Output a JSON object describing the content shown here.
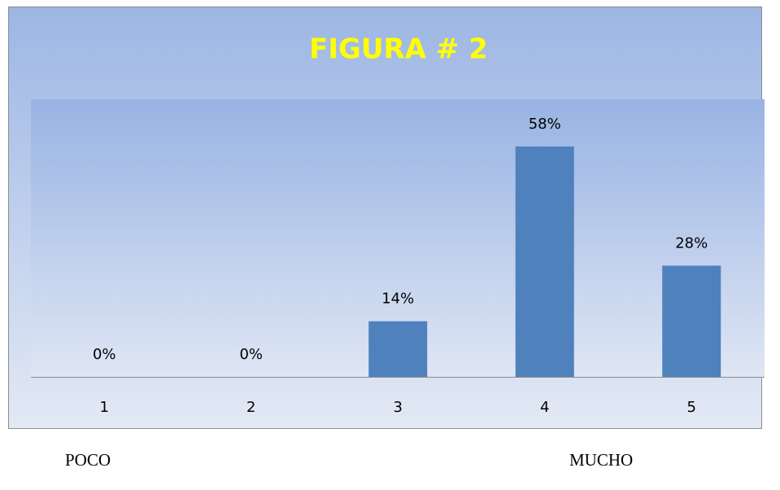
{
  "chart_data": {
    "type": "bar",
    "title": "FIGURA # 2",
    "categories": [
      "1",
      "2",
      "3",
      "4",
      "5"
    ],
    "values": [
      0,
      0,
      14,
      58,
      28
    ],
    "value_labels": [
      "0%",
      "0%",
      "14%",
      "58%",
      "28%"
    ],
    "color": "#4f81bd",
    "annotations": [
      "POCO",
      "MUCHO"
    ]
  }
}
